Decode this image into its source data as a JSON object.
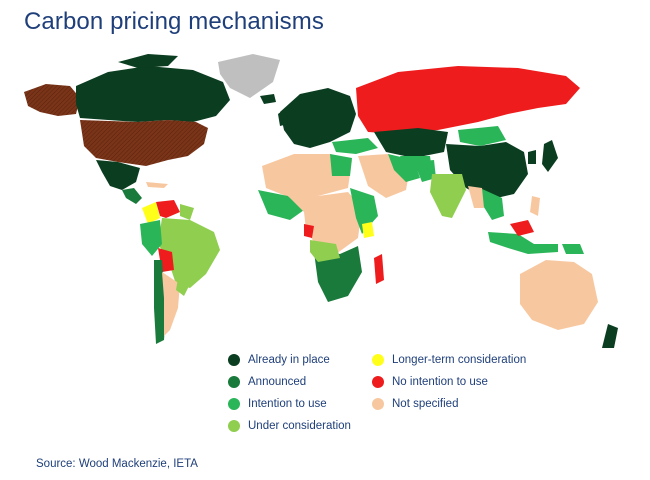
{
  "title": "Carbon pricing mechanisms",
  "source": "Source: Wood Mackenzie, IETA",
  "legend": [
    {
      "label": "Already in place",
      "color": "#0b3d20"
    },
    {
      "label": "Announced",
      "color": "#1a7a3c"
    },
    {
      "label": "Intention to use",
      "color": "#2bb559"
    },
    {
      "label": "Under consideration",
      "color": "#8fce4f"
    },
    {
      "label": "Longer-term consideration",
      "color": "#ffff1a"
    },
    {
      "label": "No intention to use",
      "color": "#ee1c1c"
    },
    {
      "label": "Not specified",
      "color": "#f7c8a0"
    }
  ],
  "colors": {
    "no_data": "#bfbfbf",
    "hatched": "#7a3418"
  }
}
